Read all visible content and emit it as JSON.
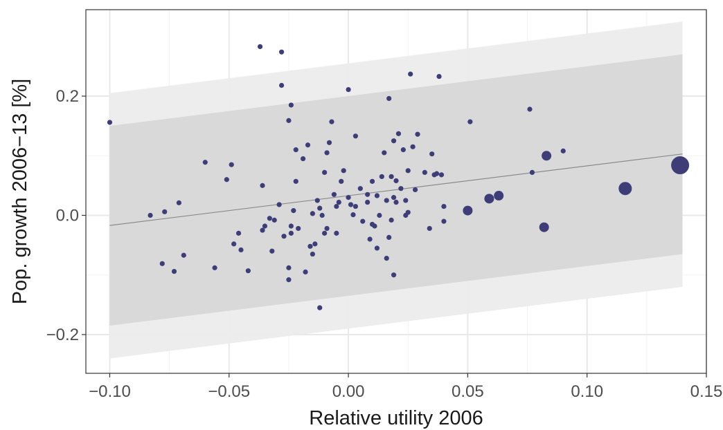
{
  "chart_data": {
    "type": "scatter",
    "xlabel": "Relative utility 2006",
    "ylabel": "Pop. growth 2006−13 [%]",
    "xlim": [
      -0.11,
      0.15
    ],
    "ylim": [
      -0.265,
      0.345
    ],
    "x_ticks": [
      -0.1,
      -0.05,
      0.0,
      0.05,
      0.1,
      0.15
    ],
    "x_tick_labels": [
      "−0.10",
      "−0.05",
      "0.00",
      "0.05",
      "0.10",
      "0.15"
    ],
    "y_ticks": [
      -0.2,
      0.0,
      0.2
    ],
    "y_tick_labels": [
      "−0.2",
      "0.0",
      "0.2"
    ],
    "grid": true,
    "colors": {
      "point": "#3e3d78",
      "band_outer": "#ececec",
      "band_inner": "#d9d9d9",
      "fit_line": "#8a8a8a",
      "grid_major": "#e8e8e8",
      "grid_minor": "#f3f3f3",
      "frame": "#333333"
    },
    "fit_line": {
      "x": [
        -0.1,
        0.14
      ],
      "y": [
        -0.017,
        0.103
      ]
    },
    "bands": [
      {
        "name": "outer",
        "x": [
          -0.1,
          0.14
        ],
        "lower": [
          -0.24,
          -0.12
        ],
        "upper": [
          0.205,
          0.325
        ]
      },
      {
        "name": "inner",
        "x": [
          -0.1,
          0.14
        ],
        "lower": [
          -0.185,
          -0.065
        ],
        "upper": [
          0.15,
          0.27
        ]
      }
    ],
    "points": [
      {
        "x": -0.1,
        "y": 0.156,
        "s": 1
      },
      {
        "x": -0.083,
        "y": 0.0,
        "s": 1
      },
      {
        "x": -0.078,
        "y": -0.081,
        "s": 1
      },
      {
        "x": -0.077,
        "y": 0.006,
        "s": 1
      },
      {
        "x": -0.073,
        "y": -0.094,
        "s": 1
      },
      {
        "x": -0.071,
        "y": 0.021,
        "s": 1
      },
      {
        "x": -0.069,
        "y": -0.067,
        "s": 1
      },
      {
        "x": -0.06,
        "y": 0.089,
        "s": 1
      },
      {
        "x": -0.056,
        "y": -0.088,
        "s": 1
      },
      {
        "x": -0.051,
        "y": 0.06,
        "s": 1
      },
      {
        "x": -0.049,
        "y": 0.085,
        "s": 1
      },
      {
        "x": -0.048,
        "y": -0.048,
        "s": 1
      },
      {
        "x": -0.046,
        "y": -0.03,
        "s": 1
      },
      {
        "x": -0.045,
        "y": -0.058,
        "s": 1
      },
      {
        "x": -0.042,
        "y": -0.093,
        "s": 1
      },
      {
        "x": -0.037,
        "y": 0.283,
        "s": 1
      },
      {
        "x": -0.036,
        "y": 0.05,
        "s": 1
      },
      {
        "x": -0.036,
        "y": -0.025,
        "s": 1
      },
      {
        "x": -0.035,
        "y": -0.018,
        "s": 1
      },
      {
        "x": -0.033,
        "y": -0.005,
        "s": 1
      },
      {
        "x": -0.032,
        "y": -0.06,
        "s": 1
      },
      {
        "x": -0.031,
        "y": -0.008,
        "s": 1
      },
      {
        "x": -0.029,
        "y": 0.018,
        "s": 1
      },
      {
        "x": -0.028,
        "y": 0.274,
        "s": 1
      },
      {
        "x": -0.028,
        "y": 0.218,
        "s": 1
      },
      {
        "x": -0.027,
        "y": -0.035,
        "s": 1
      },
      {
        "x": -0.025,
        "y": 0.159,
        "s": 1
      },
      {
        "x": -0.025,
        "y": -0.108,
        "s": 1
      },
      {
        "x": -0.025,
        "y": -0.088,
        "s": 1
      },
      {
        "x": -0.024,
        "y": 0.185,
        "s": 1
      },
      {
        "x": -0.024,
        "y": -0.03,
        "s": 1
      },
      {
        "x": -0.024,
        "y": -0.018,
        "s": 1
      },
      {
        "x": -0.023,
        "y": 0.008,
        "s": 1
      },
      {
        "x": -0.022,
        "y": 0.11,
        "s": 1
      },
      {
        "x": -0.022,
        "y": 0.057,
        "s": 1
      },
      {
        "x": -0.021,
        "y": -0.022,
        "s": 1
      },
      {
        "x": -0.019,
        "y": 0.095,
        "s": 1
      },
      {
        "x": -0.018,
        "y": -0.095,
        "s": 1
      },
      {
        "x": -0.017,
        "y": 0.118,
        "s": 1
      },
      {
        "x": -0.016,
        "y": -0.052,
        "s": 1
      },
      {
        "x": -0.015,
        "y": 0.003,
        "s": 1
      },
      {
        "x": -0.015,
        "y": -0.065,
        "s": 1
      },
      {
        "x": -0.014,
        "y": -0.048,
        "s": 1
      },
      {
        "x": -0.013,
        "y": 0.025,
        "s": 1
      },
      {
        "x": -0.012,
        "y": 0.012,
        "s": 1
      },
      {
        "x": -0.012,
        "y": -0.155,
        "s": 1
      },
      {
        "x": -0.011,
        "y": 0.0,
        "s": 1
      },
      {
        "x": -0.01,
        "y": 0.072,
        "s": 1
      },
      {
        "x": -0.01,
        "y": -0.03,
        "s": 1
      },
      {
        "x": -0.009,
        "y": 0.105,
        "s": 1
      },
      {
        "x": -0.009,
        "y": -0.022,
        "s": 1
      },
      {
        "x": -0.008,
        "y": 0.122,
        "s": 1
      },
      {
        "x": -0.007,
        "y": 0.157,
        "s": 1
      },
      {
        "x": -0.006,
        "y": 0.035,
        "s": 1
      },
      {
        "x": -0.005,
        "y": 0.015,
        "s": 1
      },
      {
        "x": -0.005,
        "y": -0.03,
        "s": 1
      },
      {
        "x": -0.004,
        "y": 0.022,
        "s": 1
      },
      {
        "x": -0.003,
        "y": 0.057,
        "s": 1
      },
      {
        "x": -0.002,
        "y": 0.075,
        "s": 1
      },
      {
        "x": 0.0,
        "y": 0.211,
        "s": 1
      },
      {
        "x": 0.0,
        "y": 0.03,
        "s": 1
      },
      {
        "x": 0.001,
        "y": 0.018,
        "s": 1
      },
      {
        "x": 0.002,
        "y": 0.001,
        "s": 1
      },
      {
        "x": 0.003,
        "y": 0.133,
        "s": 1
      },
      {
        "x": 0.003,
        "y": 0.015,
        "s": 1
      },
      {
        "x": 0.005,
        "y": 0.045,
        "s": 1
      },
      {
        "x": 0.006,
        "y": -0.01,
        "s": 1
      },
      {
        "x": 0.008,
        "y": 0.022,
        "s": 1
      },
      {
        "x": 0.008,
        "y": 0.035,
        "s": 1
      },
      {
        "x": 0.009,
        "y": -0.04,
        "s": 1
      },
      {
        "x": 0.01,
        "y": 0.057,
        "s": 1
      },
      {
        "x": 0.01,
        "y": -0.015,
        "s": 1
      },
      {
        "x": 0.011,
        "y": -0.018,
        "s": 1
      },
      {
        "x": 0.012,
        "y": 0.033,
        "s": 1
      },
      {
        "x": 0.012,
        "y": -0.055,
        "s": 1
      },
      {
        "x": 0.013,
        "y": 0.0,
        "s": 1
      },
      {
        "x": 0.014,
        "y": 0.065,
        "s": 1
      },
      {
        "x": 0.015,
        "y": 0.105,
        "s": 1
      },
      {
        "x": 0.016,
        "y": 0.025,
        "s": 1
      },
      {
        "x": 0.016,
        "y": -0.072,
        "s": 1
      },
      {
        "x": 0.017,
        "y": 0.196,
        "s": 1
      },
      {
        "x": 0.017,
        "y": -0.037,
        "s": 1
      },
      {
        "x": 0.018,
        "y": 0.065,
        "s": 1
      },
      {
        "x": 0.018,
        "y": -0.008,
        "s": 1
      },
      {
        "x": 0.019,
        "y": 0.125,
        "s": 1
      },
      {
        "x": 0.019,
        "y": 0.03,
        "s": 1
      },
      {
        "x": 0.019,
        "y": -0.1,
        "s": 1
      },
      {
        "x": 0.02,
        "y": 0.058,
        "s": 1
      },
      {
        "x": 0.02,
        "y": 0.022,
        "s": 1
      },
      {
        "x": 0.021,
        "y": 0.137,
        "s": 1
      },
      {
        "x": 0.022,
        "y": 0.045,
        "s": 1
      },
      {
        "x": 0.023,
        "y": 0.11,
        "s": 1
      },
      {
        "x": 0.024,
        "y": 0.025,
        "s": 1
      },
      {
        "x": 0.024,
        "y": 0.0,
        "s": 1
      },
      {
        "x": 0.025,
        "y": 0.075,
        "s": 1
      },
      {
        "x": 0.025,
        "y": 0.005,
        "s": 1
      },
      {
        "x": 0.026,
        "y": 0.237,
        "s": 1
      },
      {
        "x": 0.027,
        "y": 0.115,
        "s": 1
      },
      {
        "x": 0.028,
        "y": 0.043,
        "s": 1
      },
      {
        "x": 0.029,
        "y": 0.136,
        "s": 1
      },
      {
        "x": 0.032,
        "y": 0.072,
        "s": 1
      },
      {
        "x": 0.034,
        "y": -0.022,
        "s": 1
      },
      {
        "x": 0.035,
        "y": 0.103,
        "s": 1
      },
      {
        "x": 0.036,
        "y": 0.068,
        "s": 1
      },
      {
        "x": 0.037,
        "y": 0.07,
        "s": 1
      },
      {
        "x": 0.038,
        "y": 0.233,
        "s": 1
      },
      {
        "x": 0.039,
        "y": 0.068,
        "s": 1
      },
      {
        "x": 0.04,
        "y": 0.015,
        "s": 1
      },
      {
        "x": 0.04,
        "y": -0.01,
        "s": 1
      },
      {
        "x": 0.05,
        "y": 0.008,
        "s": 2
      },
      {
        "x": 0.051,
        "y": 0.157,
        "s": 1
      },
      {
        "x": 0.059,
        "y": 0.028,
        "s": 2
      },
      {
        "x": 0.063,
        "y": 0.033,
        "s": 2
      },
      {
        "x": 0.076,
        "y": 0.178,
        "s": 1
      },
      {
        "x": 0.077,
        "y": 0.072,
        "s": 1
      },
      {
        "x": 0.082,
        "y": -0.02,
        "s": 2
      },
      {
        "x": 0.083,
        "y": 0.1,
        "s": 2
      },
      {
        "x": 0.09,
        "y": 0.108,
        "s": 1
      },
      {
        "x": 0.116,
        "y": 0.045,
        "s": 3
      },
      {
        "x": 0.139,
        "y": 0.084,
        "s": 4
      }
    ]
  }
}
